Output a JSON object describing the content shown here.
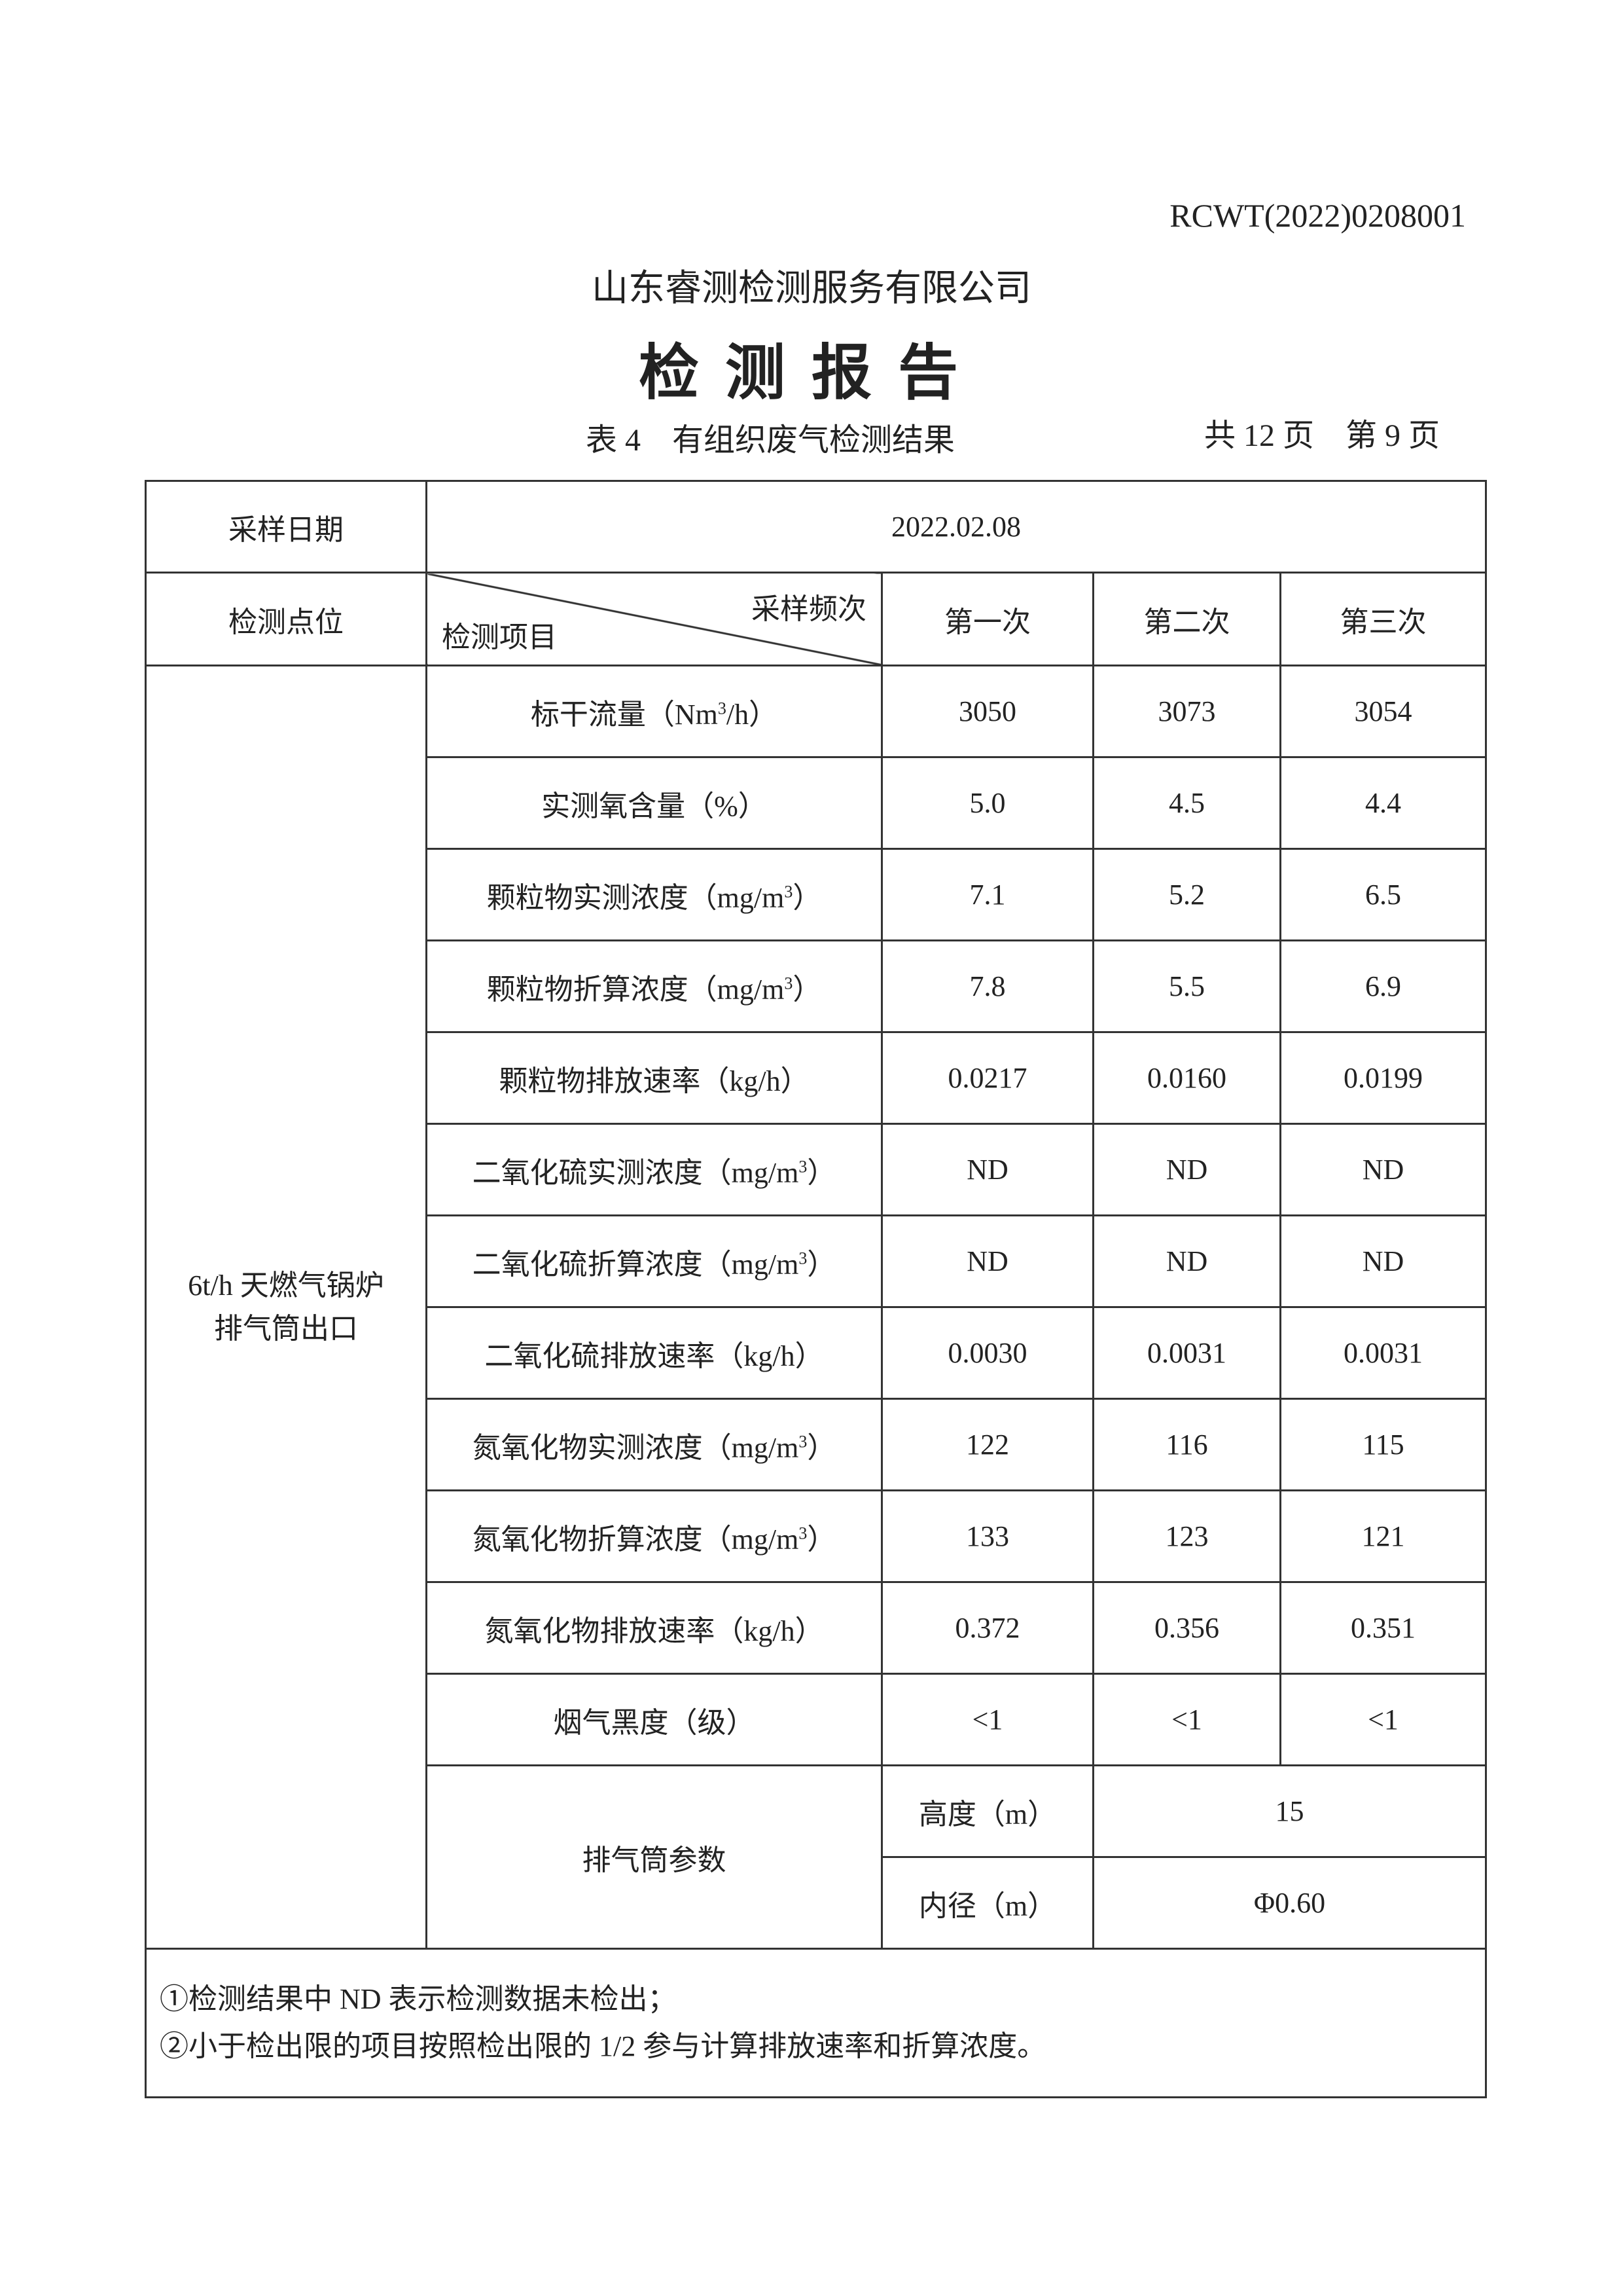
{
  "header": {
    "report_no": "RCWT(2022)0208001",
    "company": "山东睿测检测服务有限公司",
    "title": "检测报告",
    "table_caption": "表 4　有组织废气检测结果",
    "pages": "共 12 页　第 9 页"
  },
  "table": {
    "date_label": "采样日期",
    "date_value": "2022.02.08",
    "point_label": "检测点位",
    "freq_label": "采样频次",
    "item_label": "检测项目",
    "columns": [
      "第一次",
      "第二次",
      "第三次"
    ],
    "point_name_line1": "6t/h 天燃气锅炉",
    "point_name_line2": "排气筒出口",
    "rows": [
      {
        "item": "标干流量（Nm",
        "sup": "3",
        "tail": "/h）",
        "values": [
          "3050",
          "3073",
          "3054"
        ]
      },
      {
        "item": "实测氧含量（%）",
        "sup": "",
        "tail": "",
        "values": [
          "5.0",
          "4.5",
          "4.4"
        ]
      },
      {
        "item": "颗粒物实测浓度（mg/m",
        "sup": "3",
        "tail": "）",
        "values": [
          "7.1",
          "5.2",
          "6.5"
        ]
      },
      {
        "item": "颗粒物折算浓度（mg/m",
        "sup": "3",
        "tail": "）",
        "values": [
          "7.8",
          "5.5",
          "6.9"
        ]
      },
      {
        "item": "颗粒物排放速率（kg/h）",
        "sup": "",
        "tail": "",
        "values": [
          "0.0217",
          "0.0160",
          "0.0199"
        ]
      },
      {
        "item": "二氧化硫实测浓度（mg/m",
        "sup": "3",
        "tail": "）",
        "values": [
          "ND",
          "ND",
          "ND"
        ]
      },
      {
        "item": "二氧化硫折算浓度（mg/m",
        "sup": "3",
        "tail": "）",
        "values": [
          "ND",
          "ND",
          "ND"
        ]
      },
      {
        "item": "二氧化硫排放速率（kg/h）",
        "sup": "",
        "tail": "",
        "values": [
          "0.0030",
          "0.0031",
          "0.0031"
        ]
      },
      {
        "item": "氮氧化物实测浓度（mg/m",
        "sup": "3",
        "tail": "）",
        "values": [
          "122",
          "116",
          "115"
        ]
      },
      {
        "item": "氮氧化物折算浓度（mg/m",
        "sup": "3",
        "tail": "）",
        "values": [
          "133",
          "123",
          "121"
        ]
      },
      {
        "item": "氮氧化物排放速率（kg/h）",
        "sup": "",
        "tail": "",
        "values": [
          "0.372",
          "0.356",
          "0.351"
        ]
      },
      {
        "item": "烟气黑度（级）",
        "sup": "",
        "tail": "",
        "values": [
          "<1",
          "<1",
          "<1"
        ]
      }
    ],
    "stack": {
      "label": "排气筒参数",
      "height_label": "高度（m）",
      "height_value": "15",
      "diameter_label": "内径（m）",
      "diameter_value": "Φ0.60"
    },
    "notes": [
      "①检测结果中 ND 表示检测数据未检出；",
      "②小于检出限的项目按照检出限的 1/2 参与计算排放速率和折算浓度。"
    ]
  }
}
